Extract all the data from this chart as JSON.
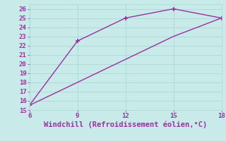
{
  "line1_x": [
    6,
    9,
    12,
    15,
    18
  ],
  "line1_y": [
    15.5,
    22.5,
    25,
    26,
    25
  ],
  "line2_x": [
    6,
    9,
    12,
    15,
    18
  ],
  "line2_y": [
    15.5,
    18,
    20.5,
    23,
    25
  ],
  "line_color": "#9B30A0",
  "bg_color": "#C8EAE8",
  "grid_color": "#A8D8D8",
  "xlabel": "Windchill (Refroidissement éolien,°C)",
  "xlabel_color": "#9B30A0",
  "xlim": [
    6,
    18
  ],
  "ylim": [
    15,
    26.5
  ],
  "xticks": [
    6,
    9,
    12,
    15,
    18
  ],
  "yticks": [
    15,
    16,
    17,
    18,
    19,
    20,
    21,
    22,
    23,
    24,
    25,
    26
  ],
  "marker": "+",
  "markersize": 5,
  "markeredgewidth": 1.2,
  "linewidth": 1.0,
  "tick_label_color": "#9B30A0",
  "tick_label_fontsize": 6.5,
  "xlabel_fontsize": 7.5
}
